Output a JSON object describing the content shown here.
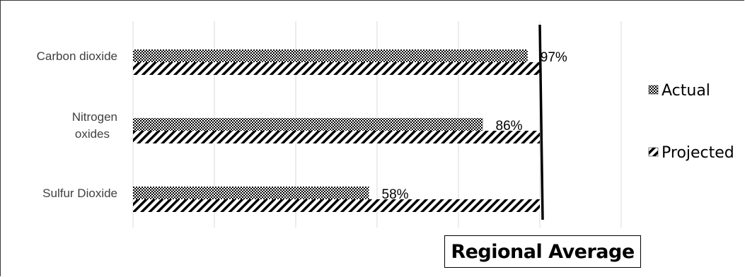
{
  "chart_data": {
    "type": "bar",
    "orientation": "horizontal",
    "categories": [
      "Carbon dioxide",
      "Nitrogen oxides",
      "Sulfur Dioxide"
    ],
    "series": [
      {
        "name": "Actual",
        "values": [
          97,
          86,
          58
        ],
        "pattern": "checker"
      },
      {
        "name": "Projected",
        "values": [
          100,
          100,
          100
        ],
        "pattern": "diagonal-stripes"
      }
    ],
    "data_labels": [
      "97%",
      "86%",
      "58%"
    ],
    "xlim": [
      0,
      120
    ],
    "grid": true,
    "legend": "right",
    "reference_line": {
      "value": 100,
      "label": "Regional Average"
    },
    "colors": {
      "bar_fill": "#000000",
      "bar_background": "#ffffff",
      "grid": "#d9d9d9"
    }
  }
}
